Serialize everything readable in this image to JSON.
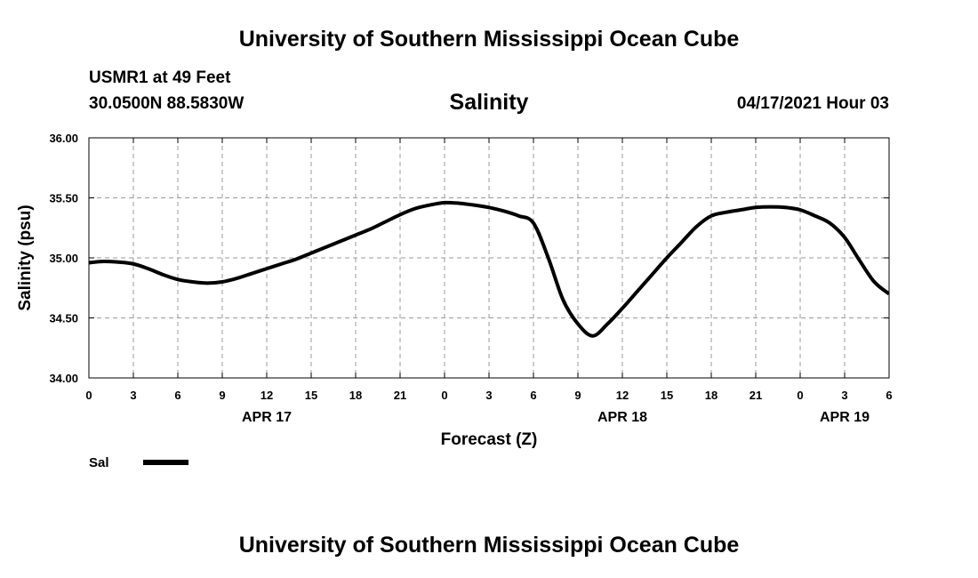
{
  "header": {
    "title": "University of Southern Mississippi Ocean Cube",
    "station": "USMR1 at 49 Feet",
    "coords": "30.0500N  88.5830W",
    "parameter": "Salinity",
    "datetime": "04/17/2021 Hour 03"
  },
  "footer": {
    "title": "University of Southern Mississippi Ocean Cube"
  },
  "chart_data": {
    "type": "line",
    "xlabel": "Forecast (Z)",
    "ylabel": "Salinity (psu)",
    "ylim": [
      34.0,
      36.0
    ],
    "y_ticks": [
      "34.00",
      "34.50",
      "35.00",
      "35.50",
      "36.00"
    ],
    "x_range_hours": [
      0,
      54
    ],
    "x_tick_labels": [
      "0",
      "3",
      "6",
      "9",
      "12",
      "15",
      "18",
      "21",
      "0",
      "3",
      "6",
      "9",
      "12",
      "15",
      "18",
      "21",
      "0",
      "3",
      "6"
    ],
    "day_labels": [
      {
        "label": "APR 17",
        "hour": 12
      },
      {
        "label": "APR 18",
        "hour": 36
      },
      {
        "label": "APR 19",
        "hour": 51
      }
    ],
    "grid": true,
    "legend_position": "bottom-left",
    "series": [
      {
        "name": "Sal",
        "color": "#000000",
        "x": [
          0,
          1,
          2,
          3,
          4,
          5,
          6,
          7,
          8,
          9,
          10,
          11,
          12,
          13,
          14,
          15,
          16,
          17,
          18,
          19,
          20,
          21,
          22,
          23,
          24,
          25,
          26,
          27,
          28,
          29,
          30,
          31,
          32,
          33,
          34,
          35,
          36,
          37,
          38,
          39,
          40,
          41,
          42,
          43,
          44,
          45,
          46,
          47,
          48,
          49,
          50,
          51,
          52,
          53,
          54
        ],
        "values": [
          34.96,
          34.97,
          34.965,
          34.95,
          34.91,
          34.86,
          34.82,
          34.8,
          34.79,
          34.8,
          34.83,
          34.87,
          34.91,
          34.95,
          34.99,
          35.04,
          35.09,
          35.14,
          35.19,
          35.24,
          35.3,
          35.36,
          35.41,
          35.44,
          35.46,
          35.455,
          35.44,
          35.42,
          35.39,
          35.35,
          35.29,
          35.0,
          34.65,
          34.45,
          34.35,
          34.45,
          34.58,
          34.72,
          34.86,
          35.0,
          35.13,
          35.26,
          35.35,
          35.38,
          35.4,
          35.42,
          35.425,
          35.42,
          35.4,
          35.35,
          35.29,
          35.17,
          34.98,
          34.8,
          34.7
        ]
      }
    ]
  }
}
